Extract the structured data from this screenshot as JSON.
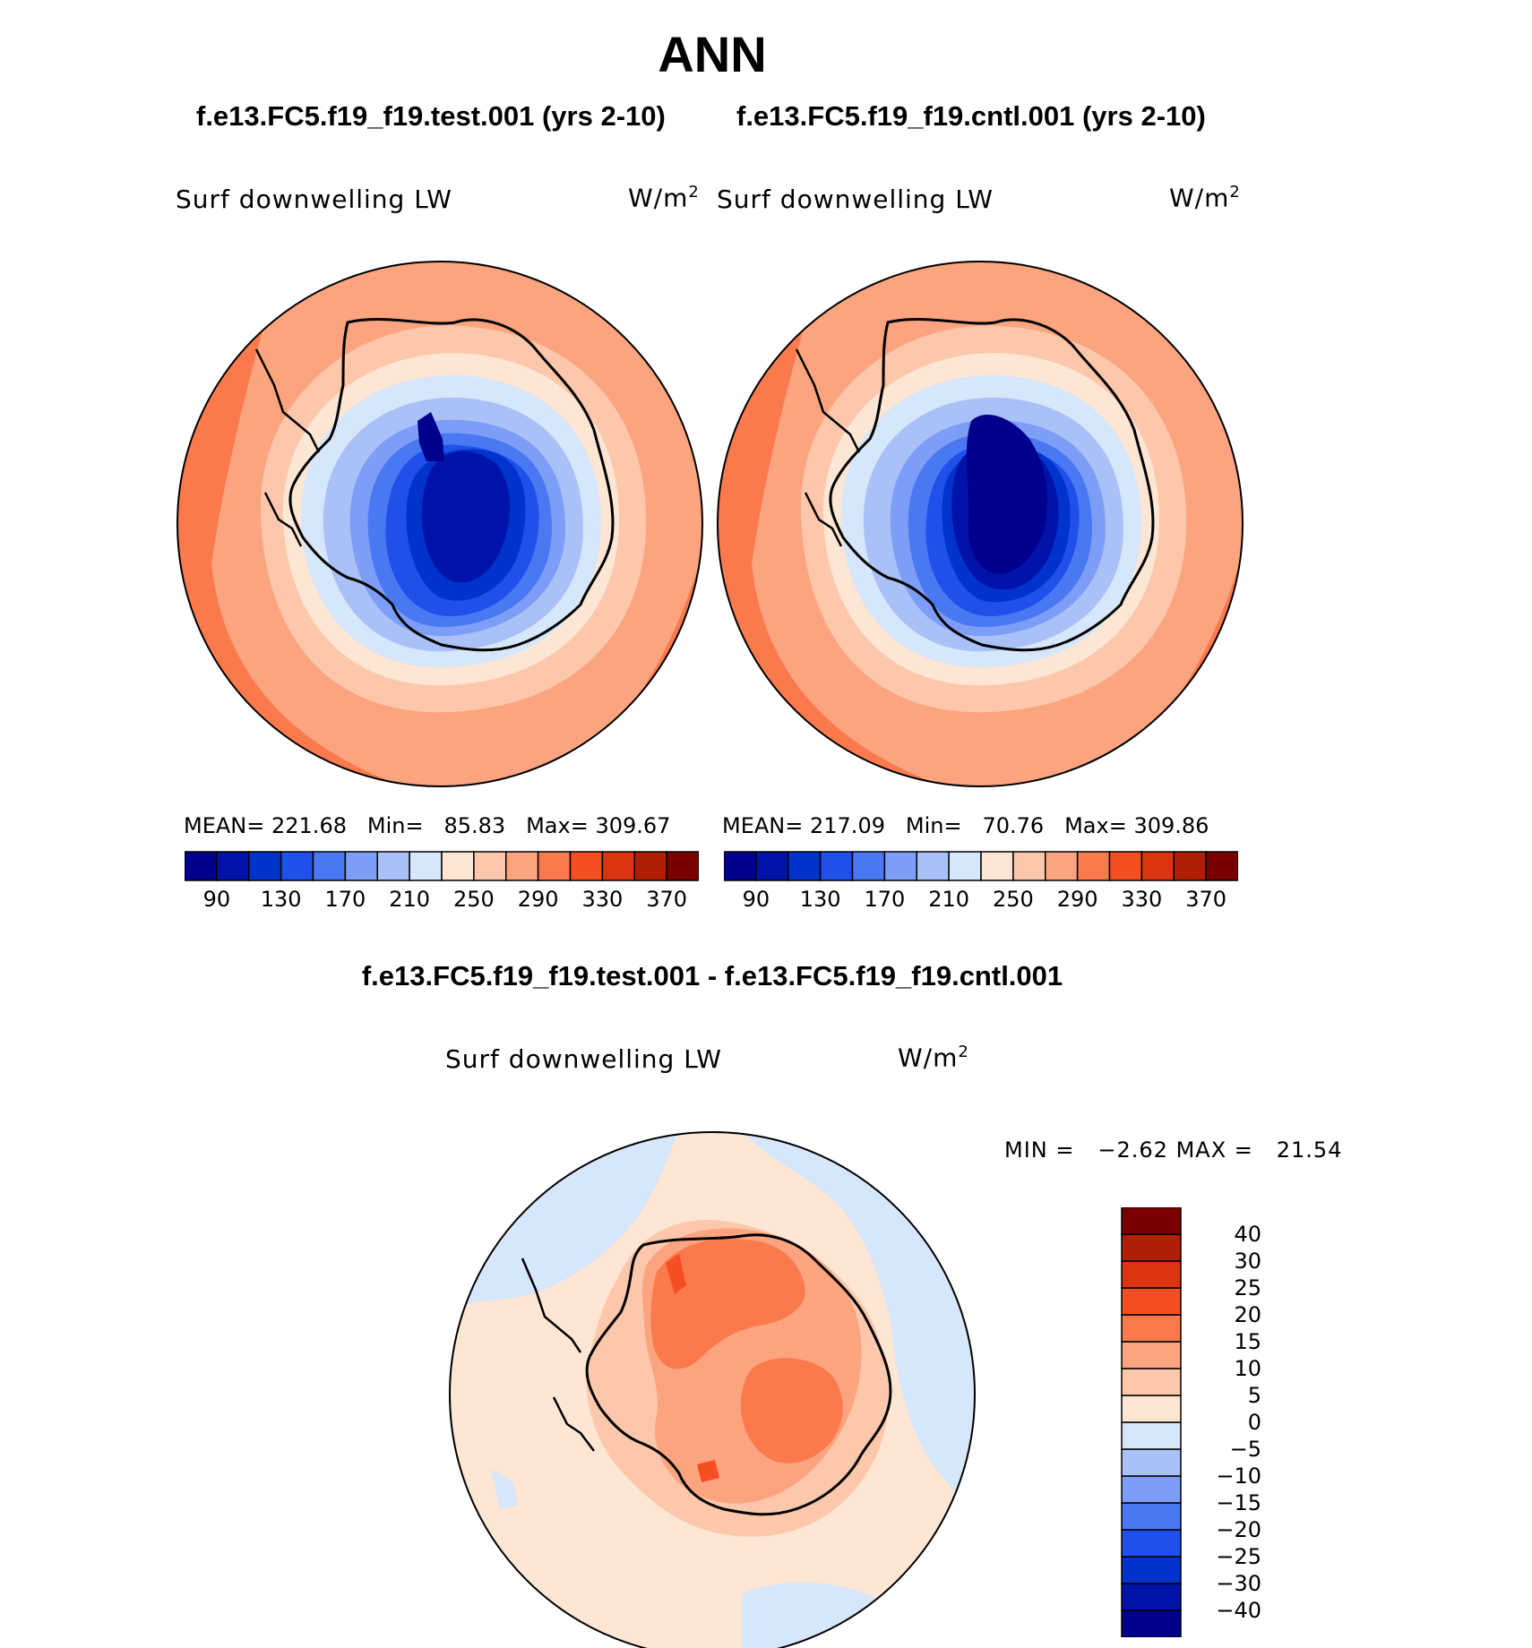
{
  "title": "ANN",
  "panels": {
    "test": {
      "case_title": "f.e13.FC5.f19_f19.test.001 (yrs 2-10)",
      "variable": "Surf downwelling LW",
      "units": "W/m",
      "units_sup": "2",
      "mean_label": "MEAN=",
      "mean_value": "221.68",
      "min_label": "Min=",
      "min_value": "85.83",
      "max_label": "Max=",
      "max_value": "309.67"
    },
    "cntl": {
      "case_title": "f.e13.FC5.f19_f19.cntl.001 (yrs 2-10)",
      "variable": "Surf downwelling LW",
      "units": "W/m",
      "units_sup": "2",
      "mean_label": "MEAN=",
      "mean_value": "217.09",
      "min_label": "Min=",
      "min_value": "70.76",
      "max_label": "Max=",
      "max_value": "309.86"
    },
    "diff": {
      "case_title": "f.e13.FC5.f19_f19.test.001 - f.e13.FC5.f19_f19.cntl.001",
      "variable": "Surf downwelling LW",
      "units": "W/m",
      "units_sup": "2",
      "min_label": "MIN =",
      "min_value": "−2.62",
      "max_label": "MAX =",
      "max_value": "21.54"
    }
  },
  "colorbar_main": {
    "colors": [
      "#00008c",
      "#0013a8",
      "#0033cc",
      "#1f50ea",
      "#4a78f2",
      "#7d9ef6",
      "#aac1f8",
      "#d6e6fb",
      "#fde6d3",
      "#fcc7aa",
      "#fba47f",
      "#fb7a4d",
      "#f54e22",
      "#dc3410",
      "#b01e05",
      "#780000"
    ],
    "tick_labels": [
      "90",
      "130",
      "170",
      "210",
      "250",
      "290",
      "330",
      "370"
    ]
  },
  "colorbar_diff": {
    "colors": [
      "#00008c",
      "#0013a8",
      "#0033cc",
      "#1f50ea",
      "#4a78f2",
      "#7d9ef6",
      "#aac1f8",
      "#d6e6fb",
      "#fde6d3",
      "#fcc7aa",
      "#fba47f",
      "#fb7a4d",
      "#f54e22",
      "#dc3410",
      "#b01e05",
      "#780000"
    ],
    "tick_labels": [
      "−40",
      "−30",
      "−25",
      "−20",
      "−15",
      "−10",
      "−5",
      "0",
      "5",
      "10",
      "15",
      "20",
      "25",
      "30",
      "40"
    ]
  }
}
